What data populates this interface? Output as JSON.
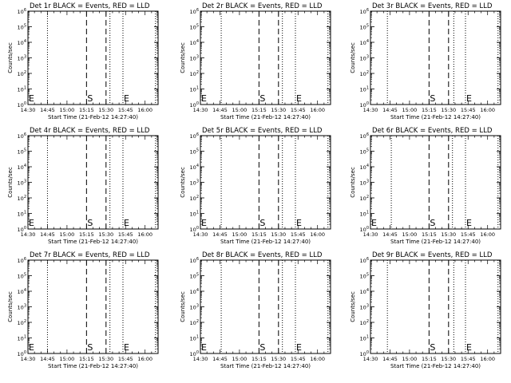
{
  "chart_data": {
    "type": "line",
    "layout": "3x3 grid",
    "x_ticks": [
      "14:30",
      "14:45",
      "15:00",
      "15:15",
      "15:30",
      "15:45",
      "16:00"
    ],
    "x_range": [
      "14:30",
      "16:10"
    ],
    "xlabel": "Start Time (21-Feb-12 14:27:40)",
    "ylabel": "Counts/sec",
    "y_scale": "log",
    "ylim": [
      1,
      1000000
    ],
    "y_ticks": [
      {
        "base": "10",
        "exp": "0"
      },
      {
        "base": "10",
        "exp": "1"
      },
      {
        "base": "10",
        "exp": "2"
      },
      {
        "base": "10",
        "exp": "3"
      },
      {
        "base": "10",
        "exp": "4"
      },
      {
        "base": "10",
        "exp": "5"
      },
      {
        "base": "10",
        "exp": "6"
      }
    ],
    "panels": [
      {
        "title": "Det 1r BLACK = Events, RED = LLD",
        "dotted": [
          "14:30",
          "14:45",
          "15:33",
          "15:43",
          "16:08"
        ],
        "dashed": [
          "15:15",
          "15:30"
        ],
        "markers": [
          {
            "label": "E",
            "x": "14:30"
          },
          {
            "label": "S",
            "x": "15:15"
          },
          {
            "label": "E",
            "x": "15:43"
          }
        ]
      },
      {
        "title": "Det 2r BLACK = Events, RED = LLD",
        "dotted": [
          "14:30",
          "14:46",
          "15:33",
          "15:43",
          "16:08"
        ],
        "dashed": [
          "15:15",
          "15:30"
        ],
        "markers": [
          {
            "label": "E",
            "x": "14:30"
          },
          {
            "label": "S",
            "x": "15:15"
          },
          {
            "label": "E",
            "x": "15:43"
          }
        ]
      },
      {
        "title": "Det 3r BLACK = Events, RED = LLD",
        "dotted": [
          "14:43",
          "15:34",
          "15:43",
          "16:08"
        ],
        "dashed": [
          "15:15",
          "15:30"
        ],
        "markers": [
          {
            "label": "S",
            "x": "15:15"
          },
          {
            "label": "E",
            "x": "15:43"
          }
        ]
      },
      {
        "title": "Det 4r BLACK = Events, RED = LLD",
        "dotted": [
          "14:30",
          "14:45",
          "15:33",
          "15:43",
          "16:08"
        ],
        "dashed": [
          "15:15",
          "15:30"
        ],
        "markers": [
          {
            "label": "E",
            "x": "14:30"
          },
          {
            "label": "S",
            "x": "15:15"
          },
          {
            "label": "E",
            "x": "15:43"
          }
        ]
      },
      {
        "title": "Det 5r BLACK = Events, RED = LLD",
        "dotted": [
          "14:30",
          "14:46",
          "15:33",
          "15:43",
          "16:08"
        ],
        "dashed": [
          "15:15",
          "15:30"
        ],
        "markers": [
          {
            "label": "E",
            "x": "14:30"
          },
          {
            "label": "S",
            "x": "15:15"
          },
          {
            "label": "E",
            "x": "15:43"
          }
        ]
      },
      {
        "title": "Det 6r BLACK = Events, RED = LLD",
        "dotted": [
          "14:30",
          "14:46",
          "15:33",
          "15:43",
          "16:08"
        ],
        "dashed": [
          "15:15",
          "15:30"
        ],
        "markers": [
          {
            "label": "E",
            "x": "14:30"
          },
          {
            "label": "S",
            "x": "15:15"
          },
          {
            "label": "E",
            "x": "15:43"
          }
        ]
      },
      {
        "title": "Det 7r BLACK = Events, RED = LLD",
        "dotted": [
          "14:30",
          "14:45",
          "15:33",
          "15:43",
          "16:08"
        ],
        "dashed": [
          "15:15",
          "15:30"
        ],
        "markers": [
          {
            "label": "E",
            "x": "14:30"
          },
          {
            "label": "S",
            "x": "15:15"
          },
          {
            "label": "E",
            "x": "15:43"
          }
        ]
      },
      {
        "title": "Det 8r BLACK = Events, RED = LLD",
        "dotted": [
          "14:30",
          "14:46",
          "15:33",
          "15:43",
          "16:08"
        ],
        "dashed": [
          "15:15",
          "15:30"
        ],
        "markers": [
          {
            "label": "E",
            "x": "14:30"
          },
          {
            "label": "S",
            "x": "15:15"
          },
          {
            "label": "E",
            "x": "15:43"
          }
        ]
      },
      {
        "title": "Det 9r BLACK = Events, RED = LLD",
        "dotted": [
          "14:43",
          "15:34",
          "15:43",
          "16:08"
        ],
        "dashed": [
          "15:15",
          "15:30"
        ],
        "markers": [
          {
            "label": "S",
            "x": "15:15"
          },
          {
            "label": "E",
            "x": "15:43"
          }
        ]
      }
    ]
  }
}
